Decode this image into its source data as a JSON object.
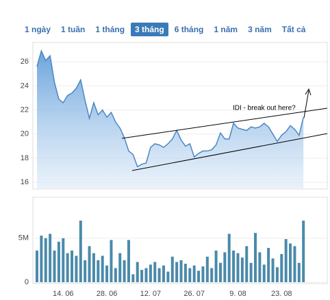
{
  "range_buttons": [
    "1 ngày",
    "1 tuần",
    "1 tháng",
    "3 tháng",
    "6 tháng",
    "1 năm",
    "3 năm",
    "Tất cả"
  ],
  "selected_button": 3,
  "chart_data": [
    {
      "type": "area",
      "annotation": "IDI - break out here?",
      "color": "#4a86c4",
      "values": [
        25.6,
        26.9,
        26.1,
        26.5,
        24.3,
        22.9,
        22.6,
        23.2,
        23.4,
        23.8,
        24.5,
        22.8,
        21.3,
        22.6,
        21.6,
        22.0,
        21.4,
        21.8,
        21.0,
        20.5,
        19.7,
        18.6,
        18.3,
        17.3,
        17.5,
        17.6,
        18.9,
        19.2,
        19.1,
        18.9,
        19.2,
        19.6,
        20.3,
        19.5,
        19.0,
        19.2,
        18.1,
        18.4,
        18.6,
        18.6,
        18.7,
        19.1,
        20.1,
        19.6,
        19.6,
        20.9,
        20.5,
        20.4,
        20.3,
        20.6,
        20.5,
        20.6,
        20.9,
        20.6,
        20.0,
        19.4,
        19.9,
        20.2,
        20.7,
        20.4,
        19.9,
        21.4
      ],
      "ylim": [
        15.5,
        27.6
      ],
      "yticks": [
        16,
        18,
        20,
        22,
        24,
        26
      ],
      "grid": true
    },
    {
      "type": "bar",
      "color": "#4a8aaa",
      "categories": [
        null,
        null,
        null,
        null,
        null,
        null,
        "14. 06",
        null,
        null,
        null,
        null,
        null,
        null,
        null,
        null,
        null,
        "28. 06",
        null,
        null,
        null,
        null,
        null,
        null,
        null,
        null,
        null,
        "12. 07",
        null,
        null,
        null,
        null,
        null,
        null,
        null,
        null,
        null,
        "26. 07",
        null,
        null,
        null,
        null,
        null,
        null,
        null,
        null,
        null,
        "9. 08",
        null,
        null,
        null,
        null,
        null,
        null,
        null,
        null,
        null,
        "23. 08",
        null,
        null,
        null,
        null,
        null
      ],
      "values": [
        3600000,
        5300000,
        5000000,
        5500000,
        3600000,
        4600000,
        5000000,
        3300000,
        3600000,
        3000000,
        7000000,
        2500000,
        4100000,
        3300000,
        2500000,
        3000000,
        1900000,
        4800000,
        1600000,
        3300000,
        2500000,
        4800000,
        900000,
        2300000,
        1400000,
        1600000,
        2000000,
        2300000,
        1600000,
        1900000,
        1200000,
        2900000,
        2300000,
        2500000,
        2100000,
        1600000,
        1900000,
        1300000,
        1800000,
        2900000,
        1600000,
        3600000,
        2200000,
        3400000,
        5500000,
        3600000,
        3300000,
        2800000,
        4100000,
        2200000,
        5600000,
        3400000,
        2000000,
        3900000,
        2700000,
        1700000,
        3200000,
        4900000,
        4400000,
        4100000,
        2200000,
        7000000
      ],
      "ylim": [
        0,
        9500000
      ],
      "yticks": [
        0,
        {
          "value": 5000000,
          "label": "5M"
        }
      ],
      "grid": true
    }
  ]
}
